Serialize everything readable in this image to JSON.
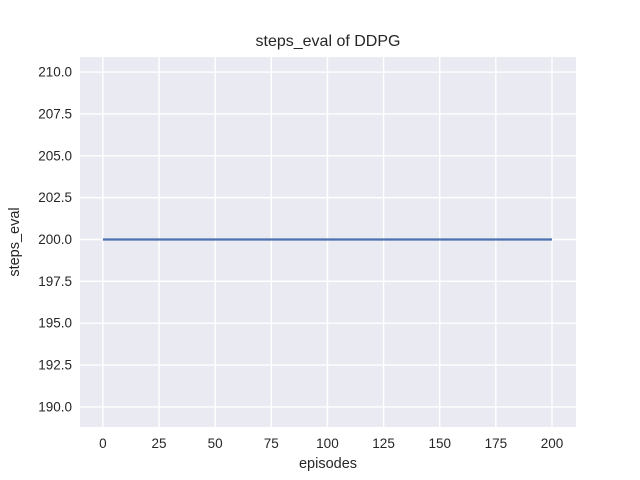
{
  "chart_data": {
    "type": "line",
    "title": "steps_eval of DDPG",
    "xlabel": "episodes",
    "ylabel": "steps_eval",
    "x_ticks": [
      0,
      25,
      50,
      75,
      100,
      125,
      150,
      175,
      200
    ],
    "y_ticks": [
      {
        "value": 190.0,
        "label": "190.0"
      },
      {
        "value": 192.5,
        "label": "192.5"
      },
      {
        "value": 195.0,
        "label": "195.0"
      },
      {
        "value": 197.5,
        "label": "197.5"
      },
      {
        "value": 200.0,
        "label": "200.0"
      },
      {
        "value": 202.5,
        "label": "202.5"
      },
      {
        "value": 205.0,
        "label": "205.0"
      },
      {
        "value": 207.5,
        "label": "207.5"
      },
      {
        "value": 210.0,
        "label": "210.0"
      }
    ],
    "xlim": [
      -10.2,
      210.7
    ],
    "ylim": [
      188.8,
      210.9
    ],
    "grid": true,
    "legend": false,
    "style": {
      "figure_bg": "#ffffff",
      "plot_bg": "#eaeaf2",
      "grid_color": "#ffffff",
      "text_color": "#262626",
      "line_color": "#4c72b0"
    },
    "series": [
      {
        "name": "DDPG",
        "color": "#4c72b0",
        "x": [
          0,
          200
        ],
        "y": [
          200,
          200
        ]
      }
    ]
  }
}
